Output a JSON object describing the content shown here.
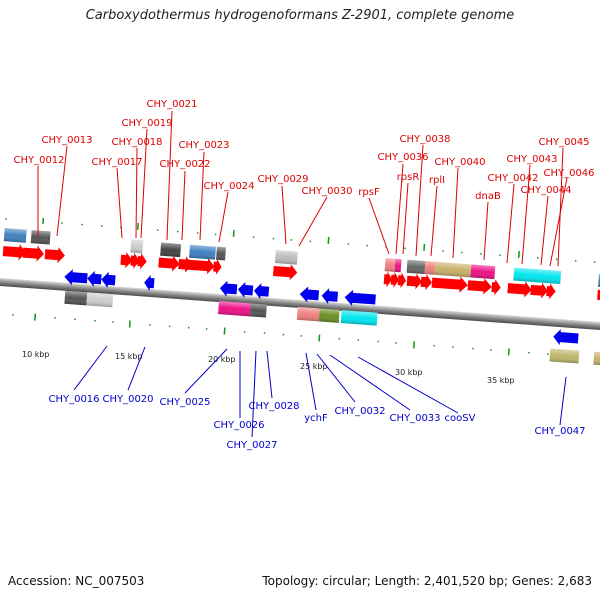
{
  "title": "Carboxydothermus hydrogenoformans Z-2901, complete genome",
  "footer": {
    "accession": "Accession: NC_007503",
    "stats": "Topology: circular; Length: 2,401,520 bp; Genes: 2,683"
  },
  "scale_labels": [
    "10 kbp",
    "15 kbp",
    "20 kbp",
    "25 kbp",
    "30 kbp",
    "35 kbp"
  ],
  "top_labels": [
    "CHY_0012",
    "CHY_0013",
    "CHY_0017",
    "CHY_0018",
    "CHY_0019",
    "CHY_0021",
    "CHY_0022",
    "CHY_0023",
    "CHY_0024",
    "CHY_0029",
    "CHY_0030",
    "rpsF",
    "CHY_0036",
    "rpsR",
    "CHY_0038",
    "rplI",
    "CHY_0040",
    "dnaB",
    "CHY_0042",
    "CHY_0043",
    "CHY_0044",
    "CHY_0045",
    "CHY_0046"
  ],
  "bottom_labels": [
    "CHY_0016",
    "CHY_0020",
    "CHY_0025",
    "CHY_0026",
    "CHY_0027",
    "CHY_0028",
    "ychF",
    "CHY_0032",
    "CHY_0033",
    "cooSV",
    "CHY_0047"
  ],
  "colors": {
    "forward": "#ff0000",
    "reverse": "#0000ee",
    "top_label": "#dd0000",
    "bottom_label": "#0000cc",
    "tick": "#119911",
    "backbone": "#777777"
  }
}
